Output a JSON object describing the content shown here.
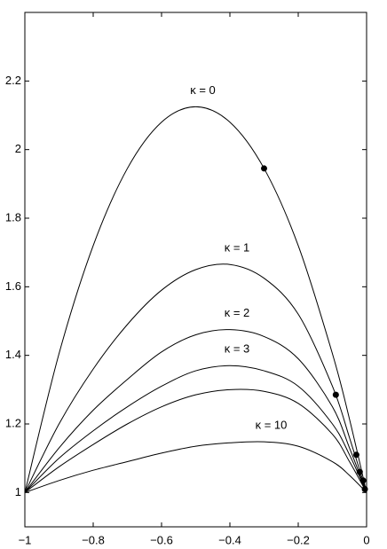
{
  "chart_data": {
    "type": "line",
    "x": [
      -1,
      -0.9,
      -0.8,
      -0.7,
      -0.6,
      -0.5,
      -0.4,
      -0.3,
      -0.2,
      -0.1,
      -0.05,
      0
    ],
    "series": [
      {
        "name": "κ = 0",
        "color": "#000000",
        "values": [
          1,
          1.405,
          1.72,
          1.945,
          2.08,
          2.125,
          2.08,
          1.945,
          1.72,
          1.405,
          1.214,
          1
        ]
      },
      {
        "name": "κ = 1",
        "color": "#000000",
        "values": [
          1,
          1.2,
          1.36,
          1.49,
          1.59,
          1.65,
          1.665,
          1.625,
          1.52,
          1.31,
          1.16,
          1
        ]
      },
      {
        "name": "κ = 2",
        "color": "#000000",
        "values": [
          1,
          1.13,
          1.24,
          1.33,
          1.41,
          1.46,
          1.475,
          1.455,
          1.39,
          1.25,
          1.13,
          1
        ]
      },
      {
        "name": "κ = 3",
        "color": "#000000",
        "values": [
          1,
          1.1,
          1.18,
          1.25,
          1.31,
          1.355,
          1.37,
          1.355,
          1.31,
          1.2,
          1.11,
          1
        ]
      },
      {
        "color": "#000000",
        "values": [
          1,
          1.075,
          1.14,
          1.2,
          1.25,
          1.285,
          1.3,
          1.295,
          1.26,
          1.17,
          1.09,
          1
        ]
      },
      {
        "name": "κ = 10",
        "color": "#000000",
        "values": [
          1,
          1.035,
          1.065,
          1.09,
          1.115,
          1.135,
          1.145,
          1.148,
          1.135,
          1.09,
          1.05,
          1
        ]
      },
      {
        "style": "markers",
        "color": "#000000",
        "x": [
          -0.3,
          -0.09,
          -0.03,
          -0.02,
          -0.01,
          -0.005
        ],
        "values": [
          1.945,
          1.285,
          1.11,
          1.06,
          1.035,
          1.01
        ]
      }
    ],
    "xlim": [
      -1,
      0
    ],
    "ylim": [
      0.9,
      2.4
    ],
    "xticks": [
      {
        "value": -1,
        "label": "−1"
      },
      {
        "value": -0.8,
        "label": "−0.8"
      },
      {
        "value": -0.6,
        "label": "−0.6"
      },
      {
        "value": -0.4,
        "label": "−0.4"
      },
      {
        "value": -0.2,
        "label": "−0.2"
      },
      0
    ],
    "yticks": [
      1,
      1.2,
      1.4,
      1.6,
      1.8,
      2,
      2.2
    ],
    "grid": false
  }
}
